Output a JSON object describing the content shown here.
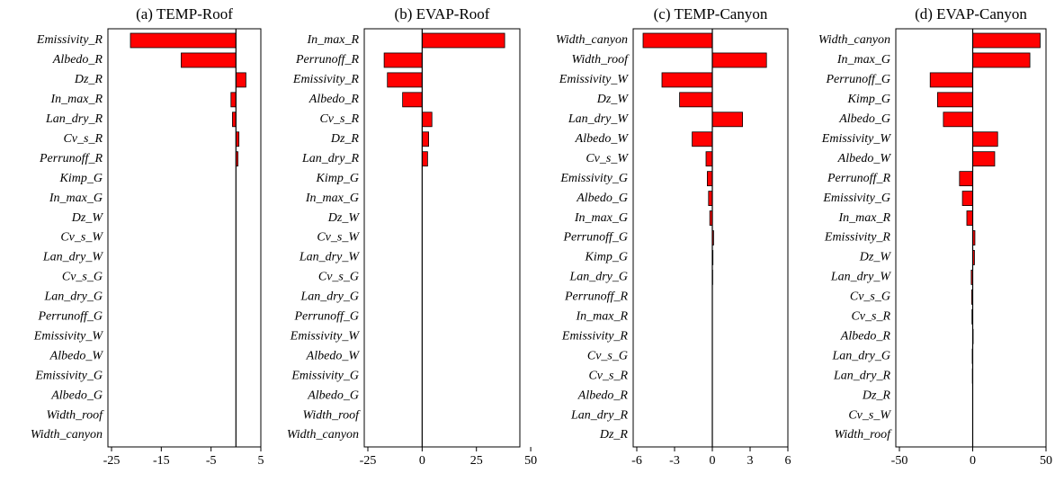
{
  "chart_data": [
    {
      "type": "barh",
      "title": "(a) TEMP-Roof",
      "color": "#ff0000",
      "categories": [
        "Emissivity_R",
        "Albedo_R",
        "Dz_R",
        "In_max_R",
        "Lan_dry_R",
        "Cv_s_R",
        "Perrunoff_R",
        "Kimp_G",
        "In_max_G",
        "Dz_W",
        "Cv_s_W",
        "Lan_dry_W",
        "Cv_s_G",
        "Lan_dry_G",
        "Perrunoff_G",
        "Emissivity_W",
        "Albedo_W",
        "Emissivity_G",
        "Albedo_G",
        "Width_roof",
        "Width_canyon"
      ],
      "values": [
        -21.2,
        -11,
        2,
        -1,
        -0.7,
        0.6,
        0.4,
        0,
        0,
        0,
        0,
        0,
        0,
        0,
        0,
        0,
        0,
        0,
        0,
        0,
        0
      ],
      "xlim": [
        -25,
        5
      ],
      "xticks": [
        -25,
        -15,
        -5,
        5
      ]
    },
    {
      "type": "barh",
      "title": "(b) EVAP-Roof",
      "color": "#ff0000",
      "categories": [
        "In_max_R",
        "Perrunoff_R",
        "Emissivity_R",
        "Albedo_R",
        "Cv_s_R",
        "Dz_R",
        "Lan_dry_R",
        "Kimp_G",
        "In_max_G",
        "Dz_W",
        "Cv_s_W",
        "Lan_dry_W",
        "Cv_s_G",
        "Lan_dry_G",
        "Perrunoff_G",
        "Emissivity_W",
        "Albedo_W",
        "Emissivity_G",
        "Albedo_G",
        "Width_roof",
        "Width_canyon"
      ],
      "values": [
        38,
        -17.5,
        -16,
        -9,
        4.5,
        3,
        2.5,
        0,
        0,
        0,
        0,
        0,
        0,
        0,
        0,
        0,
        0,
        0,
        0,
        0,
        0
      ],
      "xlim": [
        -25,
        45
      ],
      "xticks": [
        -25,
        0,
        25,
        50
      ]
    },
    {
      "type": "barh",
      "title": "(c) TEMP-Canyon",
      "color": "#ff0000",
      "categories": [
        "Width_canyon",
        "Width_roof",
        "Emissivity_W",
        "Dz_W",
        "Lan_dry_W",
        "Albedo_W",
        "Cv_s_W",
        "Emissivity_G",
        "Albedo_G",
        "In_max_G",
        "Perrunoff_G",
        "Kimp_G",
        "Lan_dry_G",
        "Perrunoff_R",
        "In_max_R",
        "Emissivity_R",
        "Cv_s_G",
        "Cv_s_R",
        "Albedo_R",
        "Lan_dry_R",
        "Dz_R"
      ],
      "values": [
        -5.5,
        4.3,
        -4,
        -2.6,
        2.4,
        -1.6,
        -0.5,
        -0.4,
        -0.3,
        -0.2,
        0.1,
        0.05,
        0.03,
        0,
        0,
        0,
        0,
        0,
        0,
        0,
        0
      ],
      "xlim": [
        -6,
        6
      ],
      "xticks": [
        -6,
        -3,
        0,
        3,
        6
      ]
    },
    {
      "type": "barh",
      "title": "(d) EVAP-Canyon",
      "color": "#ff0000",
      "categories": [
        "Width_canyon",
        "In_max_G",
        "Perrunoff_G",
        "Kimp_G",
        "Albedo_G",
        "Emissivity_W",
        "Albedo_W",
        "Perrunoff_R",
        "Emissivity_G",
        "In_max_R",
        "Emissivity_R",
        "Dz_W",
        "Lan_dry_W",
        "Cv_s_G",
        "Cv_s_R",
        "Albedo_R",
        "Lan_dry_G",
        "Lan_dry_R",
        "Dz_R",
        "Cv_s_W",
        "Width_roof"
      ],
      "values": [
        46,
        39,
        -29,
        -24,
        -20,
        17,
        15,
        -9,
        -7,
        -4,
        1.5,
        1.2,
        -1,
        -0.7,
        -0.5,
        0.3,
        -0.3,
        -0.2,
        0,
        0,
        0
      ],
      "xlim": [
        -50,
        50
      ],
      "xticks": [
        -50,
        0,
        50
      ]
    }
  ]
}
